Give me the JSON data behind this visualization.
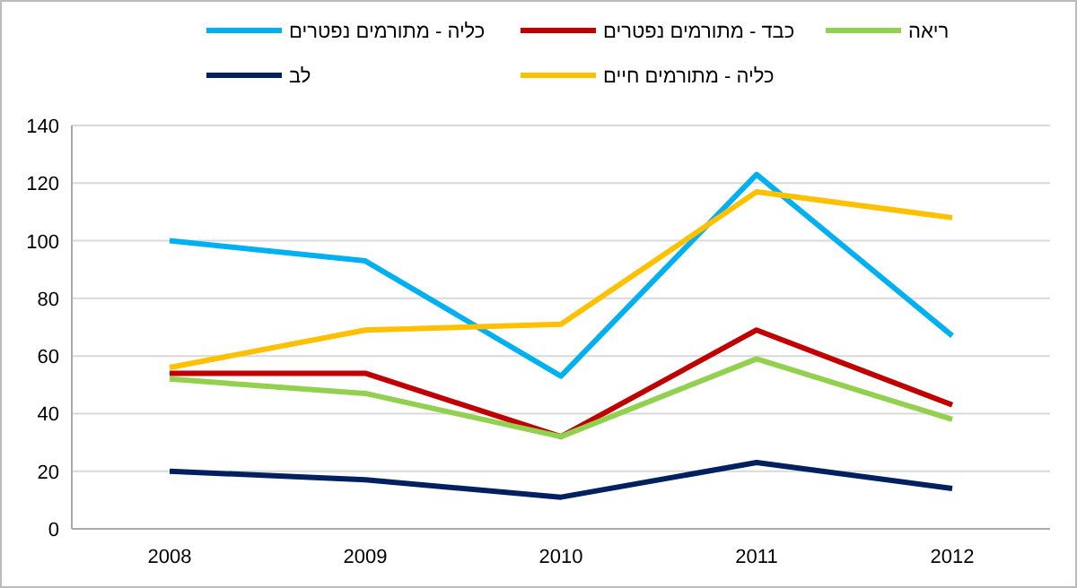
{
  "chart_data": {
    "type": "line",
    "categories": [
      "2008",
      "2009",
      "2010",
      "2011",
      "2012"
    ],
    "series": [
      {
        "name": "כליה - מתורמים נפטרים",
        "color": "#00b0f0",
        "values": [
          100,
          93,
          53,
          123,
          67
        ]
      },
      {
        "name": "כבד - מתורמים נפטרים",
        "color": "#c00000",
        "values": [
          54,
          54,
          32,
          69,
          43
        ]
      },
      {
        "name": "ריאה",
        "color": "#92d050",
        "values": [
          52,
          47,
          32,
          59,
          38
        ]
      },
      {
        "name": "לב",
        "color": "#002060",
        "values": [
          20,
          17,
          11,
          23,
          14
        ]
      },
      {
        "name": "כליה - מתורמים חיים",
        "color": "#ffc000",
        "values": [
          56,
          69,
          71,
          117,
          108
        ]
      }
    ],
    "ylim": [
      0,
      140
    ],
    "yticks": [
      0,
      20,
      40,
      60,
      80,
      100,
      120,
      140
    ],
    "grid": "y",
    "legend": "top",
    "marker": "none",
    "line_style": "solid"
  }
}
